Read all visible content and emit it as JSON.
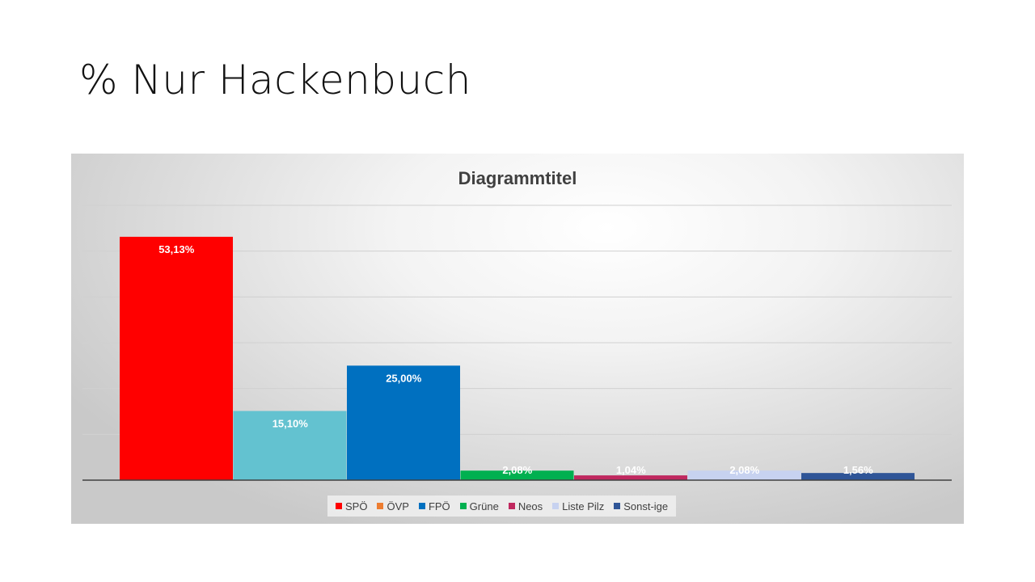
{
  "slide": {
    "title": "% Nur Hackenbuch"
  },
  "chart_data": {
    "type": "bar",
    "title": "Diagrammtitel",
    "xlabel": "",
    "ylabel": "",
    "ylim": [
      0,
      60
    ],
    "grid": true,
    "legend_position": "bottom",
    "series": [
      {
        "name": "SPÖ",
        "value": 53.13,
        "label": "53,13%",
        "color": "#ff0000"
      },
      {
        "name": "ÖVP",
        "value": 15.1,
        "label": "15,10%",
        "color": "#ed7d31"
      },
      {
        "name": "FPÖ",
        "value": 25.0,
        "label": "25,00%",
        "color": "#0070c0"
      },
      {
        "name": "Grüne",
        "value": 2.08,
        "label": "2,08%",
        "color": "#00b050"
      },
      {
        "name": "Neos",
        "value": 1.04,
        "label": "1,04%",
        "color": "#c0285f"
      },
      {
        "name": "Liste Pilz",
        "value": 2.08,
        "label": "2,08%",
        "color": "#c7d2f0"
      },
      {
        "name": "Sonst-ige",
        "value": 1.56,
        "label": "1,56%",
        "color": "#2f5597"
      }
    ],
    "bar_colors": [
      "#ff0000",
      "#63c2d0",
      "#0070c0",
      "#00b050",
      "#c0285f",
      "#c7d2f0",
      "#2f5597"
    ]
  }
}
